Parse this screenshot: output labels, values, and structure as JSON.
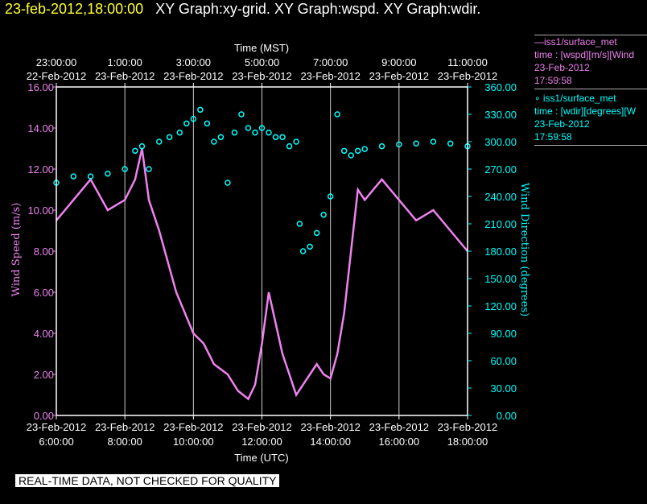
{
  "header": {
    "timestamp": "23-feb-2012,18:00:00",
    "titles": "XY Graph:xy-grid.  XY Graph:wspd.  XY Graph:wdir."
  },
  "legend": {
    "series1_line1": "—iss1/surface_met",
    "series1_line2": "time : [wspd][m/s][Wind",
    "series1_line3": "23-Feb-2012",
    "series1_line4": "17:59:58",
    "series2_line1": "∘ iss1/surface_met",
    "series2_line2": "time : [wdir][degrees][W",
    "series2_line3": "23-Feb-2012",
    "series2_line4": "17:59:58"
  },
  "notice": "REAL-TIME DATA, NOT CHECKED FOR QUALITY",
  "colors": {
    "wspd": "#ee82ee",
    "wdir": "#00ffff",
    "axis": "#ffffff",
    "grid": "#cccccc",
    "background": "#000000"
  },
  "chart_data": {
    "type": "line",
    "top_axis_title": "Time (MST)",
    "top_ticks": [
      {
        "time": "23:00:00",
        "date": "22-Feb-2012"
      },
      {
        "time": "1:00:00",
        "date": "23-Feb-2012"
      },
      {
        "time": "3:00:00",
        "date": "23-Feb-2012"
      },
      {
        "time": "5:00:00",
        "date": "23-Feb-2012"
      },
      {
        "time": "7:00:00",
        "date": "23-Feb-2012"
      },
      {
        "time": "9:00:00",
        "date": "23-Feb-2012"
      },
      {
        "time": "11:00:00",
        "date": "23-Feb-2012"
      }
    ],
    "xlabel": "Time (UTC)",
    "bottom_ticks": [
      {
        "date": "23-Feb-2012",
        "time": "6:00:00"
      },
      {
        "date": "23-Feb-2012",
        "time": "8:00:00"
      },
      {
        "date": "23-Feb-2012",
        "time": "10:00:00"
      },
      {
        "date": "23-Feb-2012",
        "time": "12:00:00"
      },
      {
        "date": "23-Feb-2012",
        "time": "14:00:00"
      },
      {
        "date": "23-Feb-2012",
        "time": "16:00:00"
      },
      {
        "date": "23-Feb-2012",
        "time": "18:00:00"
      }
    ],
    "xlim_utc_hours": [
      6.0,
      18.0
    ],
    "ylabel_left": "Wind Speed (m/s)",
    "ylim_left": [
      0,
      16
    ],
    "yticks_left": [
      "0.00",
      "2.00",
      "4.00",
      "6.00",
      "8.00",
      "10.00",
      "12.00",
      "14.00",
      "16.00"
    ],
    "ylabel_right": "Wind Direction (degrees)",
    "ylim_right": [
      0,
      360
    ],
    "yticks_right": [
      "0.00",
      "30.00",
      "60.00",
      "90.00",
      "120.00",
      "150.00",
      "180.00",
      "210.00",
      "240.00",
      "270.00",
      "300.00",
      "330.00",
      "360.00"
    ],
    "grid": true,
    "series": [
      {
        "name": "iss1/surface_met time : [wspd][m/s]",
        "axis": "left",
        "style": "line",
        "x": [
          6.0,
          6.5,
          7.0,
          7.5,
          8.0,
          8.3,
          8.5,
          8.7,
          9.0,
          9.5,
          10.0,
          10.3,
          10.6,
          11.0,
          11.3,
          11.6,
          11.8,
          12.0,
          12.2,
          12.4,
          12.6,
          12.8,
          13.0,
          13.2,
          13.4,
          13.6,
          13.8,
          14.0,
          14.2,
          14.4,
          14.6,
          14.8,
          15.0,
          15.5,
          16.0,
          16.5,
          17.0,
          17.5,
          18.0
        ],
        "y": [
          9.5,
          10.5,
          11.5,
          10.0,
          10.5,
          11.5,
          13.0,
          10.5,
          9.0,
          6.0,
          4.0,
          3.5,
          2.5,
          2.0,
          1.2,
          0.8,
          1.5,
          3.5,
          6.0,
          4.5,
          3.0,
          2.0,
          1.0,
          1.5,
          2.0,
          2.5,
          2.0,
          1.8,
          3.0,
          5.0,
          8.0,
          11.0,
          10.5,
          11.5,
          10.5,
          9.5,
          10.0,
          9.0,
          8.0
        ]
      },
      {
        "name": "iss1/surface_met time : [wdir][degrees]",
        "axis": "right",
        "style": "scatter",
        "x": [
          6.0,
          6.5,
          7.0,
          7.5,
          8.0,
          8.3,
          8.5,
          8.7,
          9.0,
          9.3,
          9.6,
          9.8,
          10.0,
          10.2,
          10.4,
          10.6,
          10.8,
          11.0,
          11.2,
          11.4,
          11.6,
          11.8,
          12.0,
          12.2,
          12.4,
          12.6,
          12.8,
          13.0,
          13.1,
          13.2,
          13.4,
          13.6,
          13.8,
          14.0,
          14.2,
          14.4,
          14.6,
          14.8,
          15.0,
          15.5,
          16.0,
          16.5,
          17.0,
          17.5,
          18.0
        ],
        "y": [
          255,
          262,
          262,
          265,
          270,
          290,
          295,
          270,
          300,
          305,
          310,
          320,
          325,
          335,
          320,
          300,
          305,
          255,
          310,
          330,
          315,
          310,
          315,
          310,
          305,
          305,
          295,
          300,
          210,
          180,
          185,
          200,
          220,
          240,
          330,
          290,
          285,
          290,
          292,
          295,
          297,
          298,
          300,
          298,
          295
        ]
      }
    ],
    "annotations": []
  }
}
